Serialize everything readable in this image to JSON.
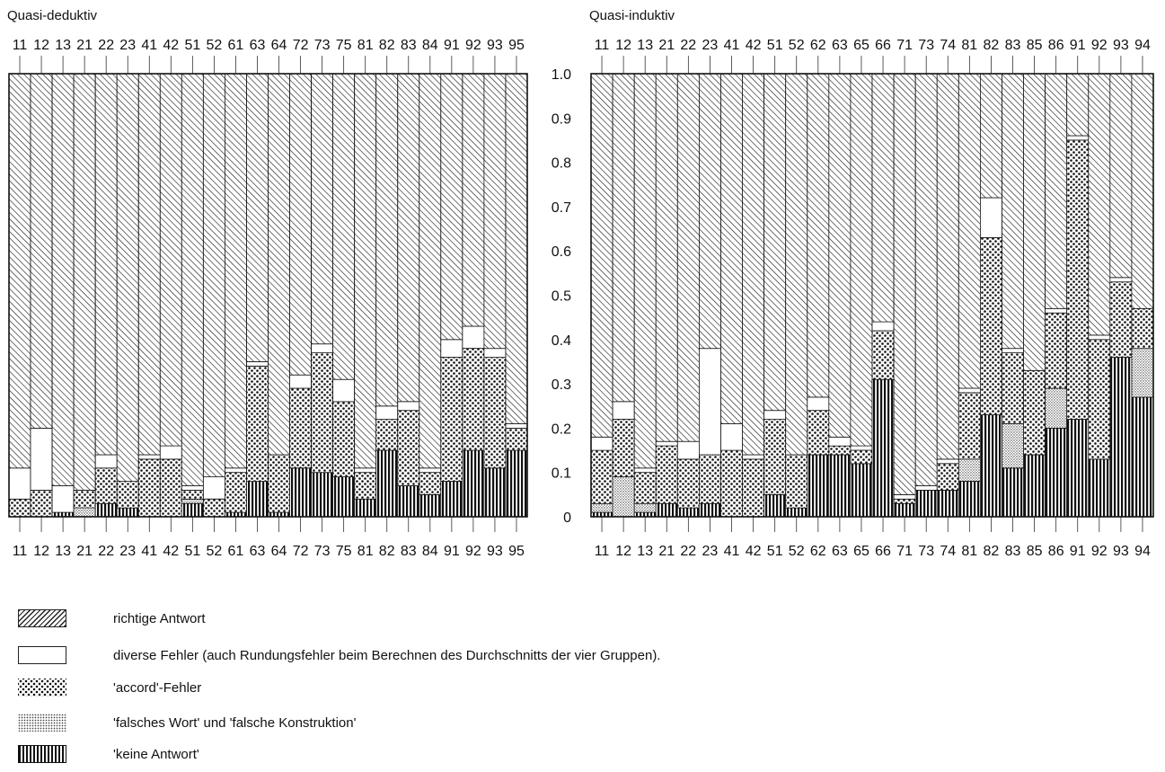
{
  "chart_data": [
    {
      "type": "bar",
      "stacked": true,
      "title": "Quasi-deduktiv",
      "categories": [
        "11",
        "12",
        "13",
        "21",
        "22",
        "23",
        "41",
        "42",
        "51",
        "52",
        "61",
        "63",
        "64",
        "72",
        "73",
        "75",
        "81",
        "82",
        "83",
        "84",
        "91",
        "92",
        "93",
        "95"
      ],
      "ylim": [
        0,
        1.0
      ],
      "yticks": [
        "0",
        "0.1",
        "0.2",
        "0.3",
        "0.4",
        "0.5",
        "0.6",
        "0.7",
        "0.8",
        "0.9",
        "1.0"
      ],
      "series": [
        {
          "name": "'keine Antwort'",
          "values": [
            0,
            0,
            0.01,
            0,
            0.03,
            0.02,
            0,
            0,
            0.03,
            0,
            0.01,
            0.08,
            0.01,
            0.11,
            0.1,
            0.09,
            0.04,
            0.15,
            0.07,
            0.05,
            0.08,
            0.15,
            0.11,
            0.15
          ]
        },
        {
          "name": "'falsches Wort' und 'falsche Konstruktion'",
          "values": [
            0,
            0,
            0,
            0.02,
            0,
            0,
            0,
            0,
            0.01,
            0,
            0,
            0,
            0,
            0,
            0,
            0,
            0,
            0,
            0,
            0,
            0,
            0,
            0,
            0
          ]
        },
        {
          "name": "'accord'-Fehler",
          "values": [
            0.04,
            0.06,
            0,
            0.04,
            0.08,
            0.06,
            0.13,
            0.13,
            0.02,
            0.04,
            0.09,
            0.26,
            0.13,
            0.18,
            0.27,
            0.17,
            0.06,
            0.07,
            0.17,
            0.05,
            0.28,
            0.23,
            0.25,
            0.05
          ]
        },
        {
          "name": "diverse Fehler (auch Rundungsfehler beim Berechnen des Durchschnitts der  vier Gruppen).",
          "values": [
            0.07,
            0.14,
            0.06,
            0,
            0.03,
            0,
            0.01,
            0.03,
            0.01,
            0.05,
            0.01,
            0.01,
            0,
            0.03,
            0.02,
            0.05,
            0.01,
            0.03,
            0.02,
            0.01,
            0.04,
            0.05,
            0.02,
            0.01
          ]
        },
        {
          "name": "richtige Antwort",
          "values": [
            0.89,
            0.8,
            0.93,
            0.94,
            0.86,
            0.92,
            0.86,
            0.84,
            0.93,
            0.91,
            0.89,
            0.65,
            0.86,
            0.68,
            0.61,
            0.69,
            0.89,
            0.75,
            0.74,
            0.89,
            0.6,
            0.57,
            0.62,
            0.79
          ]
        }
      ]
    },
    {
      "type": "bar",
      "stacked": true,
      "title": "Quasi-induktiv",
      "categories": [
        "11",
        "12",
        "13",
        "21",
        "22",
        "23",
        "41",
        "42",
        "51",
        "52",
        "62",
        "63",
        "65",
        "66",
        "71",
        "73",
        "74",
        "81",
        "82",
        "83",
        "85",
        "86",
        "91",
        "92",
        "93",
        "94"
      ],
      "ylim": [
        0,
        1.0
      ],
      "series": [
        {
          "name": "'keine Antwort'",
          "values": [
            0.01,
            0.0,
            0.01,
            0.03,
            0.02,
            0.03,
            0,
            0,
            0.05,
            0.02,
            0.14,
            0.14,
            0.12,
            0.31,
            0.03,
            0.06,
            0.06,
            0.08,
            0.23,
            0.11,
            0.14,
            0.2,
            0.22,
            0.13,
            0.36,
            0.27
          ]
        },
        {
          "name": "'falsches Wort' und 'falsche Konstruktion'",
          "values": [
            0.02,
            0.09,
            0.02,
            0,
            0,
            0,
            0,
            0,
            0,
            0,
            0,
            0,
            0,
            0,
            0,
            0,
            0,
            0.05,
            0,
            0.1,
            0,
            0.09,
            0,
            0,
            0,
            0.11
          ]
        },
        {
          "name": "'accord'-Fehler",
          "values": [
            0.12,
            0.13,
            0.07,
            0.13,
            0.11,
            0.11,
            0.15,
            0.13,
            0.17,
            0.12,
            0.1,
            0.02,
            0.03,
            0.11,
            0.01,
            0,
            0.06,
            0.15,
            0.4,
            0.16,
            0.19,
            0.17,
            0.63,
            0.27,
            0.17,
            0.09
          ]
        },
        {
          "name": "diverse Fehler (auch Rundungsfehler beim Berechnen des Durchschnitts der  vier Gruppen).",
          "values": [
            0.03,
            0.04,
            0.01,
            0.01,
            0.04,
            0.24,
            0.06,
            0.01,
            0.02,
            0,
            0.03,
            0.02,
            0.01,
            0.02,
            0.01,
            0.01,
            0.01,
            0.01,
            0.09,
            0.01,
            0,
            0.01,
            0.01,
            0.01,
            0.01,
            0
          ]
        },
        {
          "name": "richtige Antwort",
          "values": [
            0.82,
            0.74,
            0.89,
            0.83,
            0.83,
            0.62,
            0.79,
            0.86,
            0.76,
            0.86,
            0.73,
            0.82,
            0.84,
            0.56,
            0.95,
            0.93,
            0.87,
            0.71,
            0.28,
            0.62,
            0.67,
            0.53,
            0.14,
            0.59,
            0.46,
            0.53
          ]
        }
      ]
    }
  ],
  "legend": [
    {
      "key": "richtige",
      "label": "richtige Antwort"
    },
    {
      "key": "diverse",
      "label": "diverse Fehler (auch Rundungsfehler beim Berechnen des Durchschnitts der  vier Gruppen)."
    },
    {
      "key": "accord",
      "label": "'accord'-Fehler"
    },
    {
      "key": "falsch",
      "label": "'falsches Wort' und 'falsche Konstruktion'"
    },
    {
      "key": "keine",
      "label": "'keine Antwort'"
    }
  ]
}
